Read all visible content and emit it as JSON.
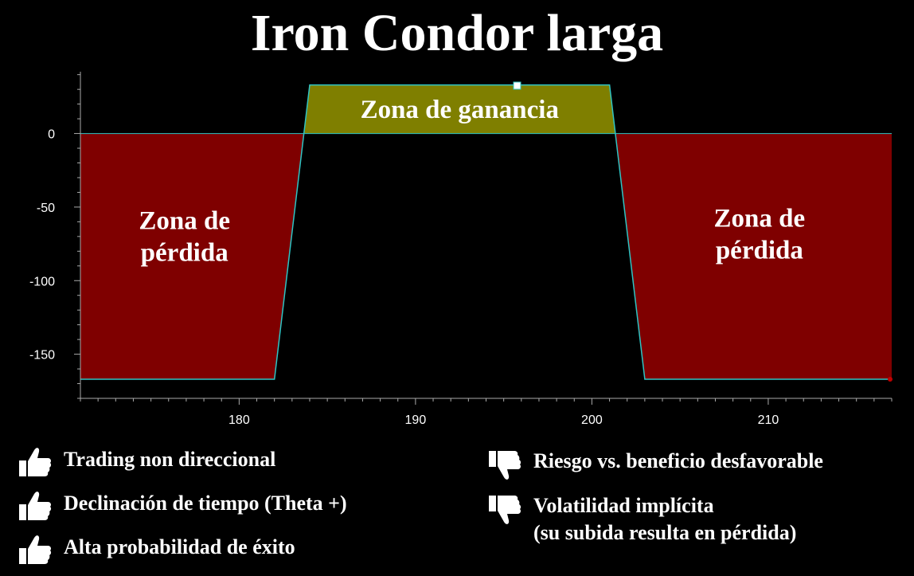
{
  "title": "Iron Condor larga",
  "colors": {
    "loss_zone": "#7f0000",
    "profit_zone": "#7f7f00",
    "payoff_line": "#2fc4c4",
    "background": "#000000"
  },
  "chart_data": {
    "type": "area",
    "x": [
      171,
      182,
      184,
      201,
      203,
      217
    ],
    "y": [
      -167,
      -167,
      33,
      33,
      -167,
      -167
    ],
    "xlim": [
      171,
      217
    ],
    "ylim": [
      -180,
      42
    ],
    "x_ticks": [
      180,
      190,
      200,
      210
    ],
    "y_ticks": [
      0,
      -50,
      -100,
      -150
    ],
    "zones": [
      {
        "label": "Zona de ganancia",
        "x_range": [
          184,
          201
        ]
      },
      {
        "label": "Zona de\npérdida",
        "x_range": [
          171,
          183
        ]
      },
      {
        "label": "Zona de\npérdida",
        "x_range": [
          202,
          217
        ]
      }
    ]
  },
  "pros": {
    "icon": "thumbs-up-icon",
    "items": [
      "Trading non direccional",
      "Declinación de tiempo (Theta +)",
      "Alta probabilidad de éxito"
    ]
  },
  "cons": {
    "icon": "thumbs-down-icon",
    "items": [
      "Riesgo vs. beneficio desfavorable",
      "Volatilidad implícita\n(su subida resulta en pérdida)"
    ]
  }
}
